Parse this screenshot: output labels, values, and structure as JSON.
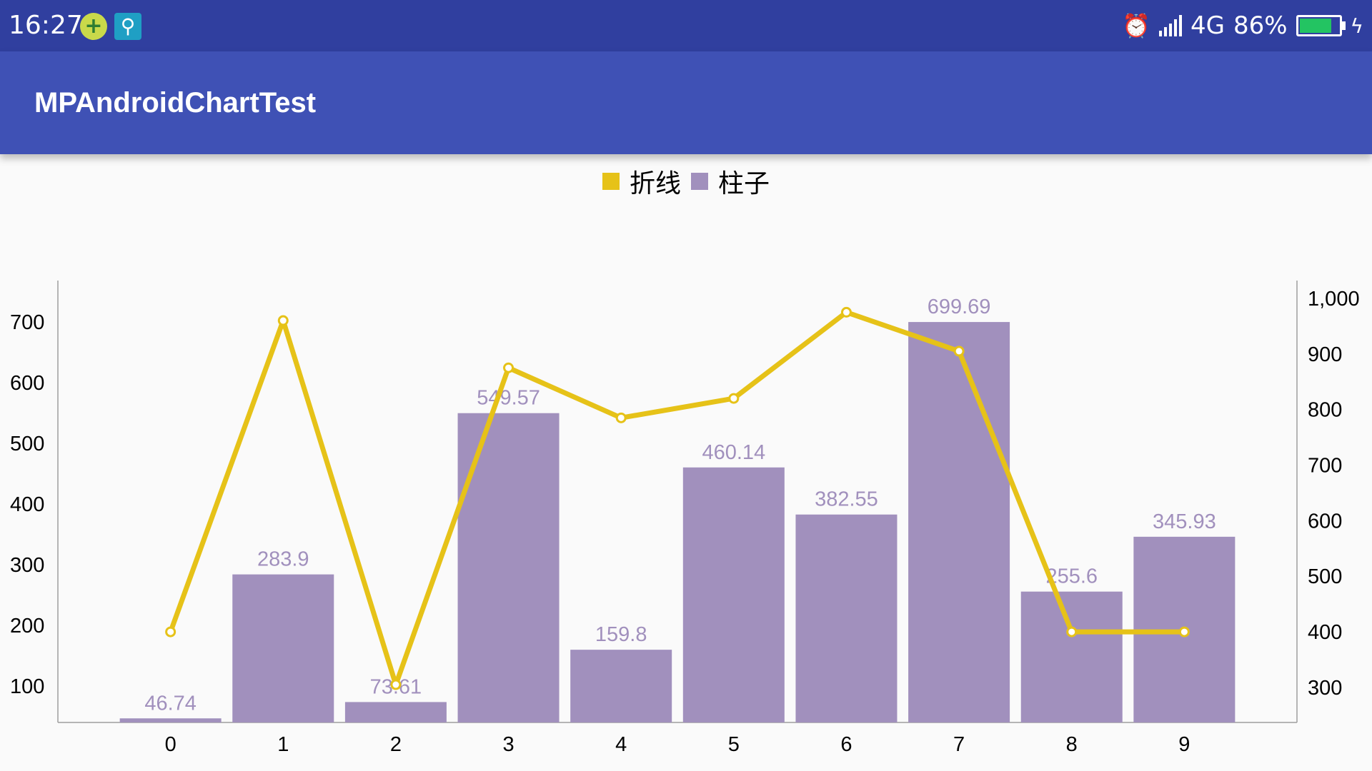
{
  "status_bar": {
    "time": "16:27",
    "network": "4G",
    "battery_percent": "86%",
    "battery_level": 0.86,
    "icons": [
      "plus-circle-icon",
      "usb-icon",
      "alarm-icon",
      "signal-icon",
      "battery-icon",
      "charging-bolt-icon"
    ]
  },
  "app_bar": {
    "title": "MPAndroidChartTest"
  },
  "colors": {
    "status_bar": "#303f9f",
    "app_bar": "#3f51b5",
    "line": "#e6c218",
    "bar": "#a190bd",
    "value_label": "#a190bd",
    "background": "#fafafa"
  },
  "chart_data": {
    "type": "bar",
    "x": [
      "0",
      "1",
      "2",
      "3",
      "4",
      "5",
      "6",
      "7",
      "8",
      "9"
    ],
    "series": [
      {
        "name": "柱子",
        "type": "bar",
        "axis": "left",
        "values": [
          46.74,
          283.9,
          73.61,
          549.57,
          159.8,
          460.14,
          382.55,
          699.69,
          255.6,
          345.93
        ],
        "labels": [
          "46.74",
          "283.9",
          "73.61",
          "549.57",
          "159.8",
          "460.14",
          "382.55",
          "699.69",
          "255.6",
          "345.93"
        ],
        "color": "#a190bd"
      },
      {
        "name": "折线",
        "type": "line",
        "axis": "right",
        "values": [
          400,
          960,
          305,
          875,
          785,
          820,
          975,
          905,
          400,
          400
        ],
        "color": "#e6c218"
      }
    ],
    "left_axis": {
      "ticks": [
        100,
        200,
        300,
        400,
        500,
        600,
        700
      ],
      "tick_labels": [
        "100",
        "200",
        "300",
        "400",
        "500",
        "600",
        "700"
      ],
      "range": [
        40,
        768
      ]
    },
    "right_axis": {
      "ticks": [
        300,
        400,
        500,
        600,
        700,
        800,
        900,
        1000
      ],
      "tick_labels": [
        "300",
        "400",
        "500",
        "600",
        "700",
        "800",
        "900",
        "1,000"
      ],
      "range": [
        237,
        1032
      ]
    },
    "x_range": [
      -1,
      10
    ],
    "legend": {
      "position": "top-center",
      "items": [
        "折线",
        "柱子"
      ]
    },
    "grid": false
  }
}
